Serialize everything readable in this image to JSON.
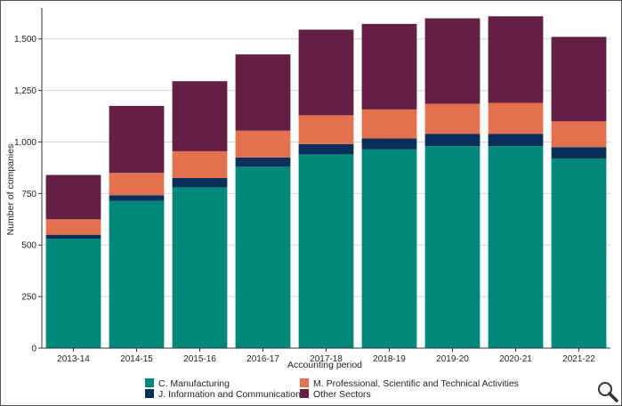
{
  "chart_data": {
    "type": "bar",
    "stacked": true,
    "title": "",
    "xlabel": "Accounting period",
    "ylabel": "Number of companies",
    "ylim": [
      0,
      1650
    ],
    "yticks": [
      0,
      250,
      500,
      750,
      1000,
      1250,
      1500
    ],
    "ytick_labels": [
      "0",
      "250",
      "500",
      "750",
      "1,000",
      "1,250",
      "1,500"
    ],
    "grid": "horizontal",
    "legend_position": "bottom",
    "categories": [
      "2013-14",
      "2014-15",
      "2015-16",
      "2016-17",
      "2017-18",
      "2018-19",
      "2019-20",
      "2020-21",
      "2021-22"
    ],
    "series": [
      {
        "name": "C. Manufacturing",
        "color": "#00897B",
        "values": [
          530,
          715,
          780,
          880,
          940,
          965,
          980,
          980,
          920
        ]
      },
      {
        "name": "J. Information and Communication",
        "color": "#0B2F5B",
        "values": [
          20,
          27,
          45,
          45,
          50,
          53,
          60,
          60,
          55
        ]
      },
      {
        "name": "M. Professional, Scientific and Technical Activities",
        "color": "#E3704F",
        "values": [
          75,
          108,
          130,
          130,
          140,
          140,
          145,
          150,
          125
        ]
      },
      {
        "name": "Other Sectors",
        "color": "#641F45",
        "values": [
          215,
          325,
          340,
          370,
          415,
          415,
          415,
          420,
          410
        ]
      }
    ]
  },
  "legend_layout": [
    {
      "series": 0
    },
    {
      "series": 2
    },
    {
      "series": 1
    },
    {
      "series": 3
    }
  ],
  "zoom_icon": "magnifier-icon"
}
